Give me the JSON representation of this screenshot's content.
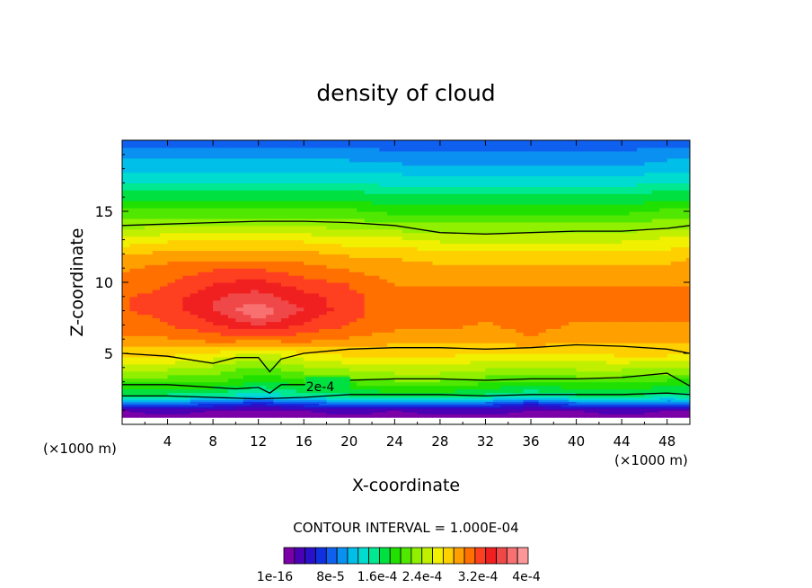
{
  "chart_data": {
    "type": "heatmap",
    "title": "density of cloud",
    "xlabel": "X-coordinate",
    "ylabel": "Z-coordinate",
    "x_unit_left": "(×1000 m)",
    "x_unit_right": "(×1000 m)",
    "xlim": [
      0,
      50
    ],
    "ylim": [
      0,
      20
    ],
    "x_ticks": [
      4,
      8,
      12,
      16,
      20,
      24,
      28,
      32,
      36,
      40,
      44,
      48
    ],
    "y_ticks": [
      5,
      10,
      15
    ],
    "contour_interval_text": "CONTOUR INTERVAL = 1.000E-04",
    "contour_label": "2e-4",
    "colorbar_labels": [
      "1e-16",
      "8e-5",
      "1.6e-4",
      "2.4e-4",
      "3.2e-4",
      "4e-4"
    ],
    "colorbar_colors": [
      "#7b00a8",
      "#4a00b4",
      "#2a10c8",
      "#1030e0",
      "#1060f0",
      "#0a90f0",
      "#00bfe8",
      "#00dcd0",
      "#00e890",
      "#00e040",
      "#20e000",
      "#50e800",
      "#90f000",
      "#c0f000",
      "#f0f000",
      "#ffd000",
      "#ffa000",
      "#ff7000",
      "#ff4020",
      "#f02020",
      "#f04848",
      "#f87070",
      "#fc9898"
    ],
    "x_grid": [
      0,
      4,
      8,
      12,
      16,
      20,
      24,
      28,
      32,
      36,
      40,
      44,
      48,
      50
    ],
    "z_grid": [
      0.5,
      1,
      1.5,
      2,
      3,
      4,
      5,
      6,
      7,
      8,
      9,
      10,
      11,
      12,
      13,
      14,
      15,
      16,
      17,
      18,
      19,
      20
    ],
    "values": [
      [
        1e-05,
        1e-05,
        1e-05,
        1e-05,
        1e-05,
        1e-05,
        1e-05,
        1e-05,
        1e-05,
        1e-05,
        1e-05,
        1e-05,
        1e-05,
        1e-05
      ],
      [
        2e-05,
        3e-05,
        2e-05,
        2e-05,
        2e-05,
        3e-05,
        2e-05,
        3e-05,
        3e-05,
        2e-05,
        2e-05,
        3e-05,
        2e-05,
        2e-05
      ],
      [
        9e-05,
        0.0001,
        8e-05,
        6e-05,
        8e-05,
        0.0001,
        0.0001,
        0.0001,
        9e-05,
        6e-05,
        9e-05,
        0.0001,
        9e-05,
        0.0001
      ],
      [
        0.00017,
        0.00017,
        0.00016,
        0.00014,
        0.00016,
        0.00017,
        0.00018,
        0.00018,
        0.00017,
        0.00015,
        0.00017,
        0.00018,
        0.00016,
        0.00017
      ],
      [
        0.00022,
        0.00022,
        0.00022,
        0.00019,
        0.00021,
        0.00022,
        0.00023,
        0.00023,
        0.00022,
        0.00021,
        0.00022,
        0.00022,
        0.00021,
        0.00021
      ],
      [
        0.00026,
        0.00026,
        0.00025,
        0.00023,
        0.00025,
        0.00026,
        0.00027,
        0.00027,
        0.00026,
        0.00025,
        0.00026,
        0.00026,
        0.00025,
        0.00025
      ],
      [
        0.0003,
        0.0003,
        0.00029,
        0.00027,
        0.00029,
        0.0003,
        0.0003,
        0.0003,
        0.00029,
        0.00029,
        0.00029,
        0.0003,
        0.0003,
        0.00029
      ],
      [
        0.00033,
        0.00033,
        0.00034,
        0.00034,
        0.00034,
        0.00033,
        0.00032,
        0.00032,
        0.00032,
        0.00033,
        0.00032,
        0.00032,
        0.00032,
        0.00032
      ],
      [
        0.00034,
        0.00035,
        0.00037,
        0.00039,
        0.00037,
        0.00035,
        0.00034,
        0.00034,
        0.00033,
        0.00034,
        0.00033,
        0.00033,
        0.00033,
        0.00033
      ],
      [
        0.00035,
        0.00036,
        0.00039,
        0.00043,
        0.00039,
        0.00036,
        0.00034,
        0.00034,
        0.00034,
        0.00034,
        0.00034,
        0.00034,
        0.00034,
        0.00034
      ],
      [
        0.00035,
        0.00036,
        0.00039,
        0.0004,
        0.00038,
        0.00036,
        0.00034,
        0.00034,
        0.00034,
        0.00034,
        0.00034,
        0.00034,
        0.00034,
        0.00034
      ],
      [
        0.00034,
        0.00035,
        0.00037,
        0.00038,
        0.00036,
        0.00035,
        0.00033,
        0.00033,
        0.00033,
        0.00033,
        0.00033,
        0.00033,
        0.00033,
        0.00033
      ],
      [
        0.00033,
        0.00034,
        0.00035,
        0.00035,
        0.00034,
        0.00033,
        0.00032,
        0.00032,
        0.00032,
        0.00032,
        0.00032,
        0.00032,
        0.00032,
        0.00032
      ],
      [
        0.00031,
        0.00032,
        0.00032,
        0.00032,
        0.00032,
        0.00031,
        0.00031,
        0.0003,
        0.0003,
        0.0003,
        0.0003,
        0.0003,
        0.0003,
        0.00031
      ],
      [
        0.00028,
        0.00029,
        0.00029,
        0.00029,
        0.00029,
        0.00028,
        0.00028,
        0.00027,
        0.00027,
        0.00027,
        0.00027,
        0.00027,
        0.00028,
        0.00028
      ],
      [
        0.00025,
        0.00025,
        0.00025,
        0.00025,
        0.00025,
        0.00025,
        0.00024,
        0.00024,
        0.00024,
        0.00024,
        0.00024,
        0.00024,
        0.00025,
        0.00025
      ],
      [
        0.00022,
        0.00022,
        0.00022,
        0.00022,
        0.00022,
        0.00022,
        0.00021,
        0.00021,
        0.00021,
        0.00021,
        0.00021,
        0.00021,
        0.00022,
        0.00022
      ],
      [
        0.00019,
        0.00019,
        0.00019,
        0.00019,
        0.00019,
        0.00019,
        0.00018,
        0.00018,
        0.00018,
        0.00018,
        0.00018,
        0.00018,
        0.00019,
        0.00019
      ],
      [
        0.00016,
        0.00016,
        0.00016,
        0.00016,
        0.00016,
        0.00016,
        0.00015,
        0.00015,
        0.00015,
        0.00015,
        0.00015,
        0.00015,
        0.00016,
        0.00016
      ],
      [
        0.00013,
        0.00013,
        0.00013,
        0.00013,
        0.00013,
        0.00013,
        0.00013,
        0.00012,
        0.00012,
        0.00012,
        0.00012,
        0.00012,
        0.00013,
        0.00013
      ],
      [
        0.00011,
        0.00011,
        0.00011,
        0.00011,
        0.00011,
        0.00011,
        0.0001,
        0.0001,
        0.0001,
        0.0001,
        0.0001,
        0.0001,
        0.00011,
        0.00011
      ],
      [
        9e-05,
        9e-05,
        9e-05,
        9e-05,
        9e-05,
        9e-05,
        9e-05,
        9e-05,
        9e-05,
        9e-05,
        9e-05,
        9e-05,
        9e-05,
        9e-05
      ]
    ],
    "contours": [
      {
        "level_label": "",
        "points": [
          [
            0,
            14
          ],
          [
            4,
            14.1
          ],
          [
            8,
            14.2
          ],
          [
            12,
            14.3
          ],
          [
            16,
            14.3
          ],
          [
            20,
            14.2
          ],
          [
            24,
            14.0
          ],
          [
            28,
            13.5
          ],
          [
            32,
            13.4
          ],
          [
            36,
            13.5
          ],
          [
            40,
            13.6
          ],
          [
            44,
            13.6
          ],
          [
            48,
            13.8
          ],
          [
            50,
            14.0
          ]
        ]
      },
      {
        "level_label": "",
        "points": [
          [
            0,
            5.0
          ],
          [
            4,
            4.8
          ],
          [
            8,
            4.3
          ],
          [
            10,
            4.7
          ],
          [
            12,
            4.7
          ],
          [
            13,
            3.7
          ],
          [
            14,
            4.6
          ],
          [
            16,
            5.0
          ],
          [
            20,
            5.3
          ],
          [
            24,
            5.4
          ],
          [
            28,
            5.4
          ],
          [
            32,
            5.3
          ],
          [
            36,
            5.4
          ],
          [
            40,
            5.6
          ],
          [
            44,
            5.5
          ],
          [
            48,
            5.3
          ],
          [
            50,
            5.0
          ]
        ]
      },
      {
        "level_label": "2e-4",
        "points": [
          [
            0,
            2.8
          ],
          [
            4,
            2.8
          ],
          [
            8,
            2.6
          ],
          [
            10,
            2.5
          ],
          [
            12,
            2.6
          ],
          [
            13,
            2.2
          ],
          [
            14,
            2.8
          ],
          [
            16,
            2.8
          ],
          [
            20,
            3.1
          ],
          [
            24,
            3.2
          ],
          [
            28,
            3.2
          ],
          [
            32,
            3.1
          ],
          [
            36,
            3.2
          ],
          [
            40,
            3.2
          ],
          [
            44,
            3.3
          ],
          [
            48,
            3.6
          ],
          [
            50,
            2.7
          ]
        ]
      },
      {
        "level_label": "",
        "points": [
          [
            0,
            2.0
          ],
          [
            4,
            2.0
          ],
          [
            8,
            1.9
          ],
          [
            12,
            1.8
          ],
          [
            16,
            1.9
          ],
          [
            20,
            2.1
          ],
          [
            24,
            2.1
          ],
          [
            28,
            2.1
          ],
          [
            32,
            2.0
          ],
          [
            36,
            2.1
          ],
          [
            40,
            2.1
          ],
          [
            44,
            2.1
          ],
          [
            48,
            2.2
          ],
          [
            50,
            2.1
          ]
        ]
      }
    ]
  }
}
